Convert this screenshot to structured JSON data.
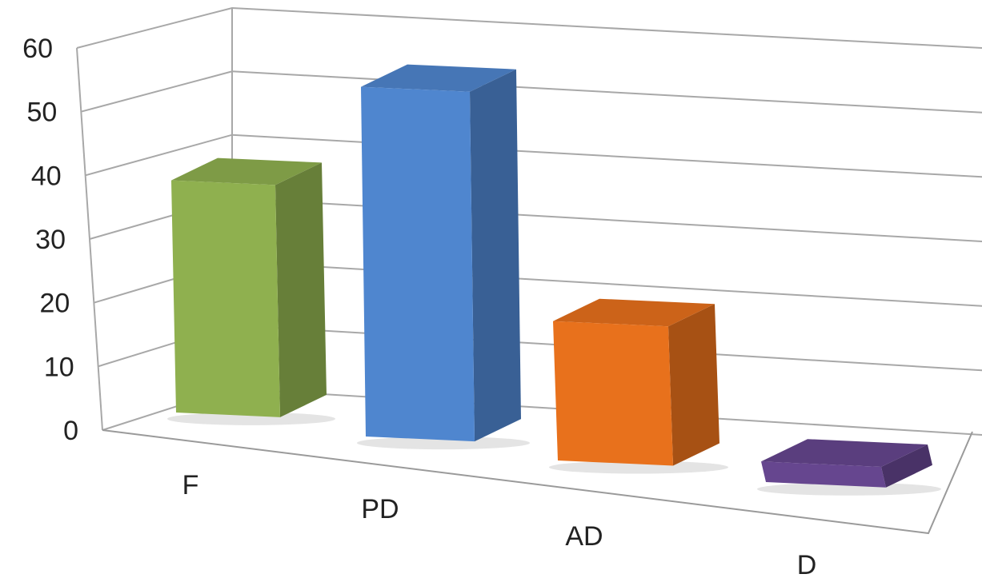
{
  "chart_data": {
    "type": "bar",
    "style": "3d-column",
    "title": "",
    "xlabel": "",
    "ylabel": "",
    "categories": [
      "F",
      "PD",
      "AD",
      "D"
    ],
    "values": [
      37,
      54,
      21,
      3
    ],
    "ylim": [
      0,
      60
    ],
    "yticks": [
      0,
      10,
      20,
      30,
      40,
      50,
      60
    ],
    "grid": true,
    "legend": "none",
    "colors": [
      "#8fb04f",
      "#4f86cf",
      "#e8711c",
      "#66468f"
    ]
  }
}
